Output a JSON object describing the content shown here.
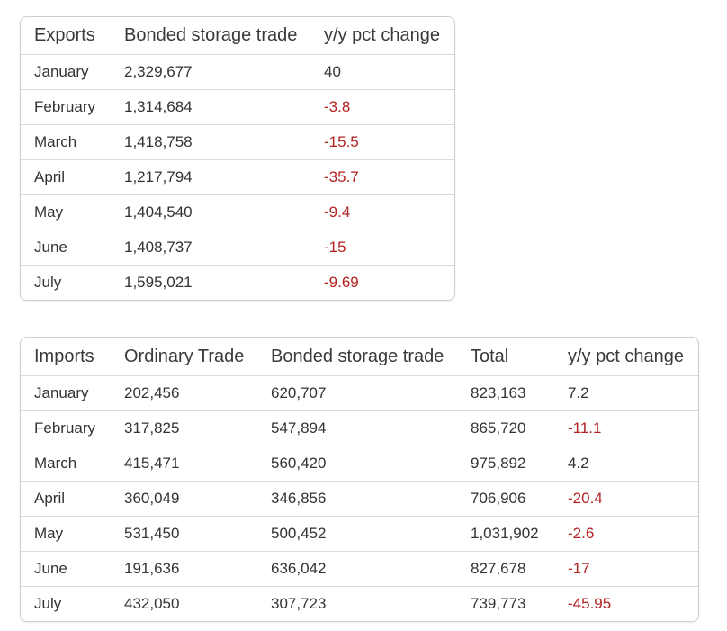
{
  "colors": {
    "negative": "#b22222",
    "text": "#333333",
    "border": "#d9d9d9"
  },
  "exports_table": {
    "headers": [
      "Exports",
      "Bonded storage trade",
      "y/y pct change"
    ],
    "rows": [
      [
        "January",
        "2,329,677",
        "40"
      ],
      [
        "February",
        "1,314,684",
        "-3.8"
      ],
      [
        "March",
        "1,418,758",
        "-15.5"
      ],
      [
        "April",
        "1,217,794",
        "-35.7"
      ],
      [
        "May",
        "1,404,540",
        "-9.4"
      ],
      [
        "June",
        "1,408,737",
        "-15"
      ],
      [
        "July",
        "1,595,021",
        "-9.69"
      ]
    ]
  },
  "imports_table": {
    "headers": [
      "Imports",
      "Ordinary Trade",
      "Bonded storage trade",
      "Total",
      "y/y pct change"
    ],
    "rows": [
      [
        "January",
        "202,456",
        "620,707",
        "823,163",
        "7.2"
      ],
      [
        "February",
        "317,825",
        "547,894",
        "865,720",
        "-11.1"
      ],
      [
        "March",
        "415,471",
        "560,420",
        "975,892",
        "4.2"
      ],
      [
        "April",
        "360,049",
        "346,856",
        "706,906",
        "-20.4"
      ],
      [
        "May",
        "531,450",
        "500,452",
        "1,031,902",
        "-2.6"
      ],
      [
        "June",
        "191,636",
        "636,042",
        "827,678",
        "-17"
      ],
      [
        "July",
        "432,050",
        "307,723",
        "739,773",
        "-45.95"
      ]
    ]
  }
}
